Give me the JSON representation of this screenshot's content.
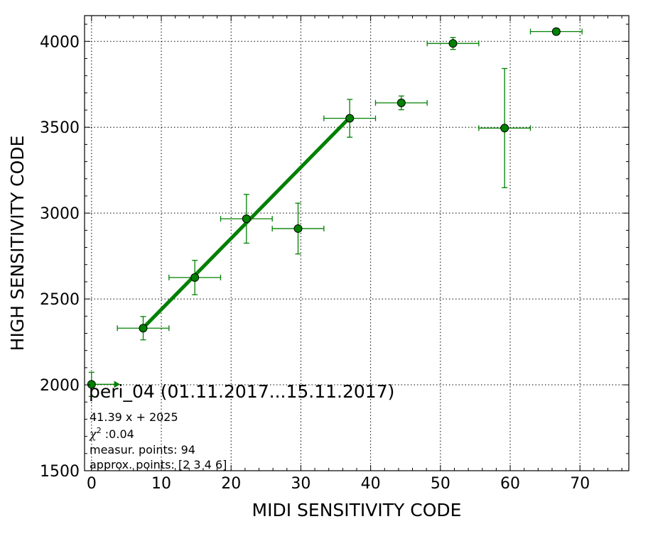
{
  "chart_data": {
    "type": "scatter",
    "title": "peri_04 (01.11.2017...15.11.2017)",
    "xlabel": "MIDI SENSITIVITY CODE",
    "ylabel": "HIGH SENSITIVITY CODE",
    "xlim": [
      -1,
      77
    ],
    "ylim": [
      1500,
      4150
    ],
    "xticks": [
      0,
      10,
      20,
      30,
      40,
      50,
      60,
      70
    ],
    "yticks": [
      1500,
      2000,
      2500,
      3000,
      3500,
      4000
    ],
    "grid": true,
    "colors": {
      "marker": "#008000",
      "marker_edge": "#000000",
      "fit_line": "#008000"
    },
    "points": [
      {
        "x": 0,
        "y": 2003,
        "xerr": [
          0,
          4
        ],
        "yerr": 70
      },
      {
        "x": 7.4,
        "y": 2330,
        "xerr": [
          3.7,
          3.7
        ],
        "yerr": 68
      },
      {
        "x": 14.8,
        "y": 2625,
        "xerr": [
          3.7,
          3.7
        ],
        "yerr": 100
      },
      {
        "x": 22.2,
        "y": 2967,
        "xerr": [
          3.7,
          3.7
        ],
        "yerr": 142
      },
      {
        "x": 29.6,
        "y": 2910,
        "xerr": [
          3.7,
          3.7
        ],
        "yerr": 148
      },
      {
        "x": 37.0,
        "y": 3552,
        "xerr": [
          3.7,
          3.7
        ],
        "yerr": 110
      },
      {
        "x": 44.4,
        "y": 3642,
        "xerr": [
          3.7,
          3.7
        ],
        "yerr": 40
      },
      {
        "x": 51.8,
        "y": 3988,
        "xerr": [
          3.7,
          3.7
        ],
        "yerr": 35
      },
      {
        "x": 59.2,
        "y": 3495,
        "xerr": [
          3.7,
          3.7
        ],
        "yerr": 347
      },
      {
        "x": 66.6,
        "y": 4057,
        "xerr": [
          3.7,
          3.7
        ],
        "yerr": 18
      }
    ],
    "fit": {
      "x_start": 7.4,
      "x_end": 37.0,
      "slope": 41.39,
      "intercept": 2025
    },
    "annotations": {
      "equation": "41.39 x + 2025",
      "chi_symbol": "χ",
      "chi_sup": "2",
      "chi_value": " :0.04",
      "measur_points": "measur. points: 94",
      "approx_points": "approx. points: [2 3 4 6]"
    }
  }
}
